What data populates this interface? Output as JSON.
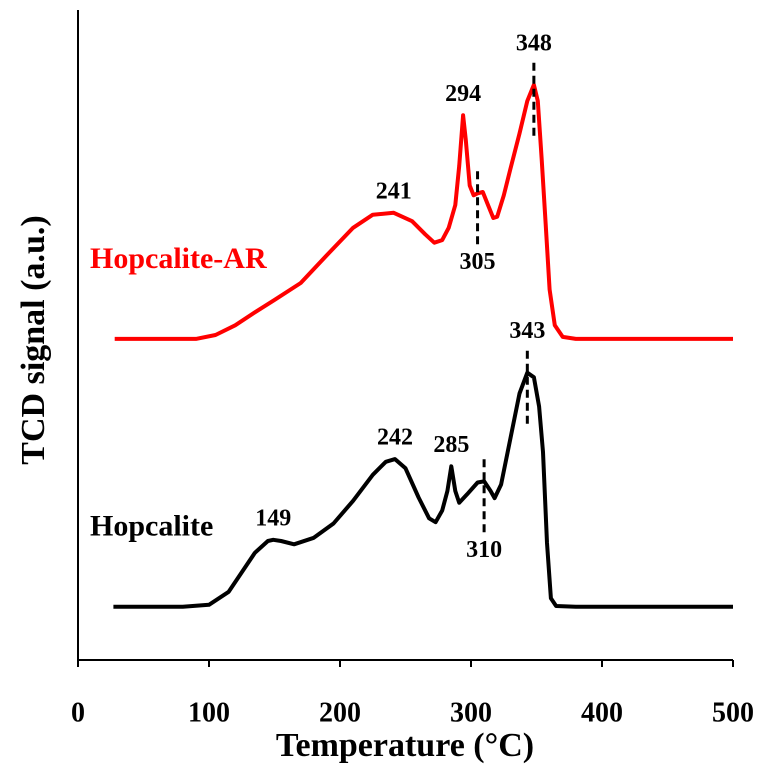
{
  "chart_data": {
    "type": "line",
    "xlabel": "Temperature (°C)",
    "ylabel": "TCD signal (a.u.)",
    "xlim": [
      0,
      500
    ],
    "xticks": [
      0,
      100,
      200,
      300,
      400,
      500
    ],
    "ylim": [
      0,
      100
    ],
    "series": [
      {
        "name": "Hopcalite-AR",
        "color": "#ff0000",
        "x": [
          28,
          90,
          105,
          120,
          135,
          150,
          170,
          190,
          210,
          225,
          241,
          255,
          265,
          272,
          278,
          283,
          288,
          291,
          294,
          296,
          299,
          302,
          305,
          309,
          313,
          317,
          320,
          325,
          330,
          337,
          343,
          348,
          351,
          354,
          357,
          360,
          364,
          370,
          380,
          500
        ],
        "values": [
          49.4,
          49.4,
          50,
          51.5,
          53.5,
          55.4,
          58,
          62.3,
          66.5,
          68.5,
          68.8,
          67.5,
          65.5,
          64.2,
          64.6,
          66.5,
          70,
          76,
          83.8,
          80,
          73,
          71.5,
          71.8,
          72,
          70,
          68,
          68.2,
          71.5,
          75.5,
          81,
          86,
          88.5,
          86,
          77,
          67,
          57,
          51.5,
          49.7,
          49.4,
          49.4
        ],
        "peaks": [
          {
            "x": 241,
            "position": "above",
            "dashed": false
          },
          {
            "x": 294,
            "position": "above",
            "dashed": false
          },
          {
            "x": 305,
            "position": "below",
            "dashed": true
          },
          {
            "x": 348,
            "position": "above",
            "dashed": true
          }
        ]
      },
      {
        "name": "Hopcalite",
        "color": "#000000",
        "x": [
          27,
          80,
          100,
          115,
          125,
          135,
          145,
          149,
          155,
          165,
          180,
          195,
          210,
          225,
          235,
          242,
          250,
          260,
          268,
          273,
          278,
          282,
          285,
          288,
          291,
          297,
          305,
          310,
          315,
          318,
          323,
          330,
          337,
          343,
          348,
          352,
          355,
          358,
          361,
          365,
          380,
          500
        ],
        "values": [
          8.2,
          8.2,
          8.5,
          10.5,
          13.5,
          16.5,
          18.3,
          18.5,
          18.3,
          17.8,
          18.8,
          21,
          24.5,
          28.5,
          30.5,
          30.9,
          29.5,
          25,
          21.8,
          21.2,
          23,
          26,
          29.8,
          26,
          24.2,
          25.5,
          27.3,
          27.5,
          26,
          24.9,
          27,
          34,
          41,
          44.2,
          43.5,
          39,
          32,
          18,
          9.5,
          8.3,
          8.2,
          8.2
        ],
        "peaks": [
          {
            "x": 149,
            "position": "above",
            "dashed": false
          },
          {
            "x": 242,
            "position": "above",
            "dashed": false
          },
          {
            "x": 285,
            "position": "above",
            "dashed": false
          },
          {
            "x": 310,
            "position": "below",
            "dashed": true
          },
          {
            "x": 343,
            "position": "above",
            "dashed": true
          }
        ]
      }
    ]
  }
}
